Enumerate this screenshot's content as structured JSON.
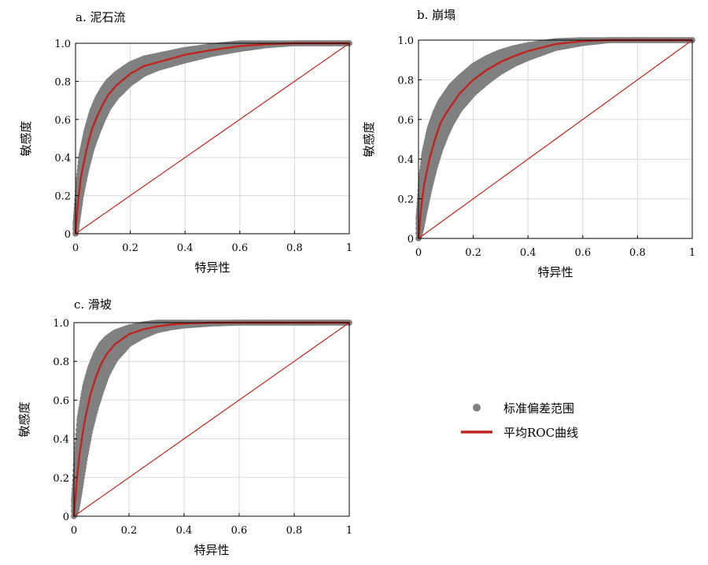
{
  "figure": {
    "legend": {
      "band_label": "标准偏差范围",
      "band_color": "#808080",
      "mean_label": "平均ROC曲线",
      "mean_color": "#c0241e"
    }
  },
  "chart_data": [
    {
      "type": "line",
      "panel_title": "a. 泥石流",
      "xlabel": "特异性",
      "ylabel": "敏感度",
      "xlim": [
        0,
        1
      ],
      "ylim": [
        0,
        1
      ],
      "x_ticks": [
        "0",
        "0.2",
        "0.4",
        "0.6",
        "0.8",
        "1"
      ],
      "y_ticks": [
        "0",
        "0.2",
        "0.4",
        "0.6",
        "0.8",
        "1.0"
      ],
      "grid": true,
      "series": [
        {
          "name": "平均ROC曲线",
          "x": [
            0,
            0.01,
            0.02,
            0.04,
            0.06,
            0.08,
            0.1,
            0.12,
            0.15,
            0.2,
            0.25,
            0.3,
            0.35,
            0.4,
            0.5,
            0.6,
            0.7,
            0.8,
            0.9,
            1
          ],
          "y": [
            0,
            0.18,
            0.3,
            0.44,
            0.55,
            0.62,
            0.68,
            0.73,
            0.78,
            0.84,
            0.88,
            0.9,
            0.92,
            0.94,
            0.965,
            0.985,
            0.995,
            1,
            1,
            1
          ]
        },
        {
          "name": "标准偏差范围",
          "x": [
            0,
            0.01,
            0.02,
            0.04,
            0.06,
            0.08,
            0.1,
            0.12,
            0.15,
            0.2,
            0.25,
            0.3,
            0.35,
            0.4,
            0.5,
            0.6,
            0.7,
            0.8,
            0.9,
            1
          ],
          "y_low": [
            0,
            0.1,
            0.2,
            0.34,
            0.45,
            0.53,
            0.6,
            0.66,
            0.72,
            0.79,
            0.84,
            0.87,
            0.89,
            0.91,
            0.945,
            0.97,
            0.99,
            1,
            1,
            1
          ],
          "y_high": [
            0.05,
            0.26,
            0.4,
            0.54,
            0.64,
            0.71,
            0.76,
            0.8,
            0.84,
            0.89,
            0.92,
            0.935,
            0.95,
            0.965,
            0.985,
            1,
            1,
            1,
            1,
            1
          ]
        },
        {
          "name": "",
          "x": [
            0,
            1
          ],
          "y": [
            0,
            1
          ]
        }
      ]
    },
    {
      "type": "line",
      "panel_title": "b. 崩塌",
      "xlabel": "特异性",
      "ylabel": "敏感度",
      "xlim": [
        0,
        1
      ],
      "ylim": [
        0,
        1
      ],
      "x_ticks": [
        "0",
        "0.2",
        "0.4",
        "0.6",
        "0.8",
        "1"
      ],
      "y_ticks": [
        "0",
        "0.2",
        "0.4",
        "0.6",
        "0.8",
        "1.0"
      ],
      "grid": true,
      "series": [
        {
          "name": "平均ROC曲线",
          "x": [
            0,
            0.01,
            0.02,
            0.04,
            0.06,
            0.08,
            0.1,
            0.12,
            0.15,
            0.2,
            0.25,
            0.3,
            0.35,
            0.4,
            0.5,
            0.6,
            0.7,
            0.8,
            0.9,
            1
          ],
          "y": [
            0,
            0.16,
            0.27,
            0.4,
            0.5,
            0.58,
            0.63,
            0.67,
            0.73,
            0.8,
            0.85,
            0.89,
            0.92,
            0.945,
            0.98,
            0.995,
            1,
            1,
            1,
            1
          ]
        },
        {
          "name": "标准偏差范围",
          "x": [
            0,
            0.01,
            0.02,
            0.04,
            0.06,
            0.08,
            0.1,
            0.12,
            0.15,
            0.2,
            0.25,
            0.3,
            0.35,
            0.4,
            0.5,
            0.6,
            0.7,
            0.8,
            0.9,
            1
          ],
          "y_low": [
            0,
            0.05,
            0.12,
            0.25,
            0.36,
            0.45,
            0.52,
            0.58,
            0.65,
            0.73,
            0.79,
            0.84,
            0.88,
            0.91,
            0.96,
            0.985,
            1,
            1,
            1,
            1
          ],
          "y_high": [
            0.1,
            0.3,
            0.42,
            0.55,
            0.63,
            0.69,
            0.73,
            0.77,
            0.81,
            0.87,
            0.91,
            0.94,
            0.96,
            0.975,
            0.995,
            1,
            1,
            1,
            1,
            1
          ]
        },
        {
          "name": "",
          "x": [
            0,
            1
          ],
          "y": [
            0,
            1
          ]
        }
      ]
    },
    {
      "type": "line",
      "panel_title": "c. 滑坡",
      "xlabel": "特异性",
      "ylabel": "敏感度",
      "xlim": [
        0,
        1
      ],
      "ylim": [
        0,
        1
      ],
      "x_ticks": [
        "0",
        "0.2",
        "0.4",
        "0.6",
        "0.8",
        "1"
      ],
      "y_ticks": [
        "0",
        "0.2",
        "0.4",
        "0.6",
        "0.8",
        "1.0"
      ],
      "grid": true,
      "series": [
        {
          "name": "平均ROC曲线",
          "x": [
            0,
            0.01,
            0.02,
            0.04,
            0.06,
            0.08,
            0.1,
            0.12,
            0.15,
            0.2,
            0.25,
            0.3,
            0.35,
            0.4,
            0.5,
            0.6,
            0.7,
            0.8,
            0.9,
            1
          ],
          "y": [
            0,
            0.18,
            0.32,
            0.5,
            0.63,
            0.72,
            0.79,
            0.84,
            0.89,
            0.94,
            0.965,
            0.98,
            0.99,
            0.995,
            1,
            1,
            1,
            1,
            1,
            1
          ]
        },
        {
          "name": "标准偏差范围",
          "x": [
            0,
            0.01,
            0.02,
            0.04,
            0.06,
            0.08,
            0.1,
            0.12,
            0.15,
            0.2,
            0.25,
            0.3,
            0.35,
            0.4,
            0.5,
            0.6,
            0.7,
            0.8,
            0.9,
            1
          ],
          "y_low": [
            0,
            0.04,
            0.12,
            0.3,
            0.45,
            0.56,
            0.65,
            0.73,
            0.81,
            0.89,
            0.93,
            0.96,
            0.975,
            0.985,
            0.995,
            1,
            1,
            1,
            1,
            1
          ],
          "y_high": [
            0.08,
            0.34,
            0.5,
            0.67,
            0.77,
            0.84,
            0.89,
            0.92,
            0.95,
            0.975,
            0.99,
            1,
            1,
            1,
            1,
            1,
            1,
            1,
            1,
            1
          ]
        },
        {
          "name": "",
          "x": [
            0,
            1
          ],
          "y": [
            0,
            1
          ]
        }
      ]
    }
  ]
}
